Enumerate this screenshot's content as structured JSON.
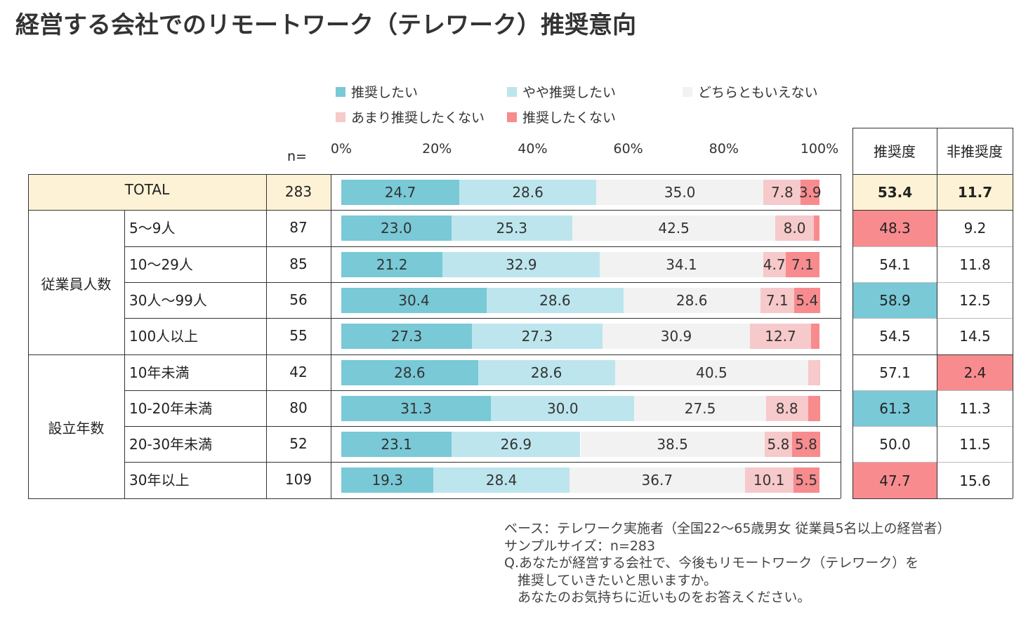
{
  "title": "経営する会社でのリモートワーク（テレワーク）推奨意向",
  "colors": {
    "strong_recommend": "#79c9d7",
    "recommend": "#bde5ed",
    "neutral": "#f2f2f2",
    "not_recommend": "#f6c9cb",
    "strong_not_recommend": "#f78b8e",
    "total_bg": "#fdf2d5"
  },
  "legend": [
    {
      "label": "推奨したい",
      "color": "#79c9d7"
    },
    {
      "label": "やや推奨したい",
      "color": "#bde5ed"
    },
    {
      "label": "どちらともいえない",
      "color": "#f2f2f2"
    },
    {
      "label": "あまり推奨したくない",
      "color": "#f6c9cb"
    },
    {
      "label": "推奨したくない",
      "color": "#f78b8e"
    }
  ],
  "header": {
    "n_label": "n=",
    "score1": "推奨度",
    "score2": "非推奨度"
  },
  "chart_data": {
    "type": "bar",
    "orientation": "horizontal-stacked-100",
    "x_ticks": [
      "0%",
      "20%",
      "40%",
      "60%",
      "80%",
      "100%"
    ],
    "xlim": [
      0,
      100
    ],
    "series": [
      {
        "name": "推奨したい"
      },
      {
        "name": "やや推奨したい"
      },
      {
        "name": "どちらともいえない"
      },
      {
        "name": "あまり推奨したくない"
      },
      {
        "name": "推奨したくない"
      }
    ],
    "rows": [
      {
        "group": "",
        "label": "TOTAL",
        "n": "283",
        "values": [
          24.7,
          28.6,
          35.0,
          7.8,
          3.9
        ],
        "labels": [
          "24.7",
          "28.6",
          "35.0",
          "7.8",
          "3.9"
        ],
        "score": "53.4",
        "nonscore": "11.7",
        "score_hl": "",
        "nonscore_hl": ""
      },
      {
        "group": "従業員人数",
        "label": "5～9人",
        "n": "87",
        "values": [
          23.0,
          25.3,
          42.5,
          8.0,
          1.2
        ],
        "labels": [
          "23.0",
          "25.3",
          "42.5",
          "8.0",
          ""
        ],
        "score": "48.3",
        "nonscore": "9.2",
        "score_hl": "low",
        "nonscore_hl": ""
      },
      {
        "group": "従業員人数",
        "label": "10～29人",
        "n": "85",
        "values": [
          21.2,
          32.9,
          34.1,
          4.7,
          7.1
        ],
        "labels": [
          "21.2",
          "32.9",
          "34.1",
          "4.7",
          "7.1"
        ],
        "score": "54.1",
        "nonscore": "11.8",
        "score_hl": "",
        "nonscore_hl": ""
      },
      {
        "group": "従業員人数",
        "label": "30人～99人",
        "n": "56",
        "values": [
          30.4,
          28.6,
          28.6,
          7.1,
          5.4
        ],
        "labels": [
          "30.4",
          "28.6",
          "28.6",
          "7.1",
          "5.4"
        ],
        "score": "58.9",
        "nonscore": "12.5",
        "score_hl": "high",
        "nonscore_hl": ""
      },
      {
        "group": "従業員人数",
        "label": "100人以上",
        "n": "55",
        "values": [
          27.3,
          27.3,
          30.9,
          12.7,
          1.8
        ],
        "labels": [
          "27.3",
          "27.3",
          "30.9",
          "12.7",
          ""
        ],
        "score": "54.5",
        "nonscore": "14.5",
        "score_hl": "",
        "nonscore_hl": ""
      },
      {
        "group": "設立年数",
        "label": "10年未満",
        "n": "42",
        "values": [
          28.6,
          28.6,
          40.5,
          2.4,
          0.0
        ],
        "labels": [
          "28.6",
          "28.6",
          "40.5",
          "",
          ""
        ],
        "score": "57.1",
        "nonscore": "2.4",
        "score_hl": "",
        "nonscore_hl": "low"
      },
      {
        "group": "設立年数",
        "label": "10-20年未満",
        "n": "80",
        "values": [
          31.3,
          30.0,
          27.5,
          8.8,
          2.5
        ],
        "labels": [
          "31.3",
          "30.0",
          "27.5",
          "8.8",
          ""
        ],
        "score": "61.3",
        "nonscore": "11.3",
        "score_hl": "high",
        "nonscore_hl": ""
      },
      {
        "group": "設立年数",
        "label": "20-30年未満",
        "n": "52",
        "values": [
          23.1,
          26.9,
          38.5,
          5.8,
          5.8
        ],
        "labels": [
          "23.1",
          "26.9",
          "38.5",
          "5.8",
          "5.8"
        ],
        "score": "50.0",
        "nonscore": "11.5",
        "score_hl": "",
        "nonscore_hl": ""
      },
      {
        "group": "設立年数",
        "label": "30年以上",
        "n": "109",
        "values": [
          19.3,
          28.4,
          36.7,
          10.1,
          5.5
        ],
        "labels": [
          "19.3",
          "28.4",
          "36.7",
          "10.1",
          "5.5"
        ],
        "score": "47.7",
        "nonscore": "15.6",
        "score_hl": "low",
        "nonscore_hl": ""
      }
    ],
    "groups": [
      "従業員人数",
      "設立年数"
    ]
  },
  "highlight_colors": {
    "high": "#79c9d7",
    "low": "#f78b8e"
  },
  "notes": [
    "ベース：テレワーク実施者（全国22～65歳男女 従業員5名以上の経営者）",
    "サンプルサイズ：n=283",
    "Q.あなたが経営する会社で、今後もリモートワーク（テレワーク）を",
    "　推奨していきたいと思いますか。",
    "　あなたのお気持ちに近いものをお答えください。"
  ]
}
